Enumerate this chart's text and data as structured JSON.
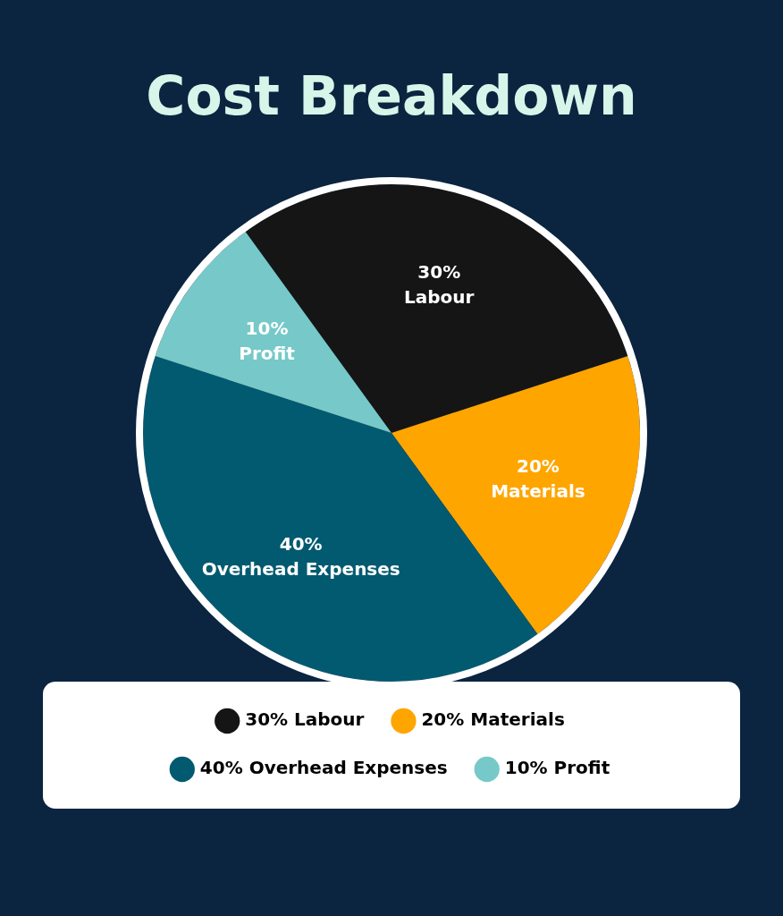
{
  "chart_data": {
    "type": "pie",
    "title": "Cost Breakdown",
    "categories": [
      "30% Labour",
      "20% Materials",
      "40% Overhead Expenses",
      "10% Profit"
    ],
    "values": [
      30,
      20,
      40,
      10
    ],
    "colors": [
      "#151515",
      "#ffa500",
      "#025a70",
      "#76c9c8"
    ],
    "legend": "bottom"
  }
}
